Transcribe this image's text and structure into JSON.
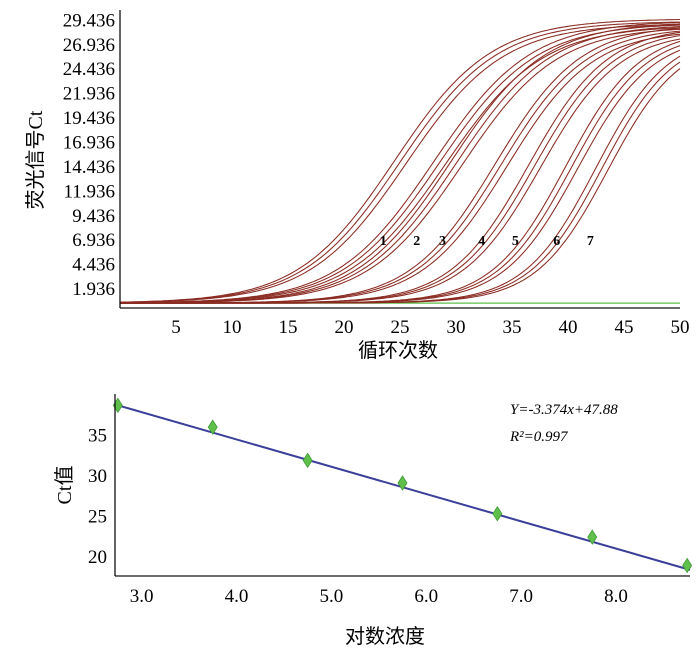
{
  "figure": {
    "charts": [
      {
        "type": "line",
        "ylabel": "荧光信号Ct",
        "xlabel": "循环次数",
        "yticks": [
          "1.936",
          "4.436",
          "6.936",
          "9.436",
          "11.936",
          "14.436",
          "16.936",
          "19.436",
          "21.936",
          "24.436",
          "26.936",
          "29.436"
        ],
        "xticks": [
          "5",
          "10",
          "15",
          "20",
          "25",
          "30",
          "35",
          "40",
          "45",
          "50"
        ],
        "baseline_color": "#5fbf4a",
        "curve_color": "#8a2b22",
        "curve_labels": [
          "1",
          "2",
          "3",
          "4",
          "5",
          "6",
          "7"
        ]
      },
      {
        "type": "scatter",
        "ylabel": "Ct值",
        "xlabel": "对数浓度",
        "yticks": [
          "20",
          "25",
          "30",
          "35"
        ],
        "xticks": [
          "3.0",
          "4.0",
          "5.0",
          "6.0",
          "7.0",
          "8.0"
        ],
        "equation": "Y=-3.374x+47.88",
        "r2": "R²=0.997",
        "line_color": "#3b3f9a",
        "point_color": "#5fbf4a"
      }
    ]
  },
  "chart_data": [
    {
      "type": "line",
      "xlabel": "循环次数",
      "ylabel": "荧光信号Ct",
      "xlim": [
        0,
        50
      ],
      "ylim": [
        0,
        30.5
      ],
      "baseline": 0.5,
      "series": [
        {
          "label": "1",
          "midpoint": 25.0,
          "width": 4.3,
          "max": 29.6,
          "label_x": 23.5,
          "label_y": 6.936
        },
        {
          "label": "2",
          "midpoint": 28.5,
          "width": 4.3,
          "max": 29.4,
          "label_x": 26.5,
          "label_y": 6.936
        },
        {
          "label": "3",
          "midpoint": 30.0,
          "width": 4.2,
          "max": 29.3,
          "label_x": 28.8,
          "label_y": 6.936
        },
        {
          "label": "4",
          "midpoint": 34.0,
          "width": 3.8,
          "max": 29.0,
          "label_x": 32.3,
          "label_y": 6.936
        },
        {
          "label": "5",
          "midpoint": 37.0,
          "width": 3.5,
          "max": 28.8,
          "label_x": 35.3,
          "label_y": 6.936
        },
        {
          "label": "6",
          "midpoint": 40.3,
          "width": 3.3,
          "max": 28.5,
          "label_x": 39.0,
          "label_y": 6.936
        },
        {
          "label": "7",
          "midpoint": 43.0,
          "width": 3.2,
          "max": 28.2,
          "label_x": 42.0,
          "label_y": 6.936
        }
      ]
    },
    {
      "type": "scatter",
      "xlabel": "对数浓度",
      "ylabel": "Ct值",
      "xlim": [
        2.72,
        8.78
      ],
      "ylim": [
        17.5,
        40.0
      ],
      "points": [
        {
          "x": 2.75,
          "y": 38.6
        },
        {
          "x": 3.75,
          "y": 35.9
        },
        {
          "x": 4.75,
          "y": 31.8
        },
        {
          "x": 5.75,
          "y": 29.0
        },
        {
          "x": 6.75,
          "y": 25.2
        },
        {
          "x": 7.75,
          "y": 22.3
        },
        {
          "x": 8.75,
          "y": 18.8
        }
      ],
      "fit": {
        "slope": -3.374,
        "intercept": 47.88
      },
      "equation": "Y=-3.374x+47.88",
      "r2": "R²=0.997"
    }
  ]
}
